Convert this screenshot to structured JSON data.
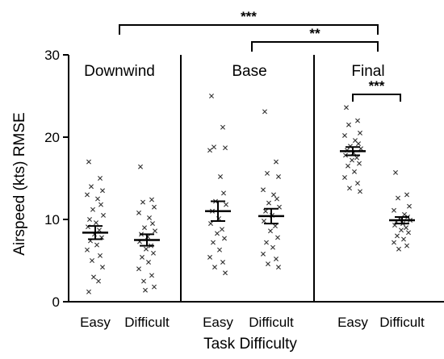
{
  "chart_data": {
    "type": "scatter",
    "xlabel": "Task Difficulty",
    "ylabel": "Airspeed (kts) RMSE",
    "ylim": [
      0,
      30
    ],
    "yticks": [
      0,
      10,
      20,
      30
    ],
    "grid": false,
    "panels": [
      {
        "title": "Downwind",
        "groups": [
          {
            "label": "Easy",
            "mean": 8.4,
            "sem": 0.8,
            "points": [
              17.0,
              15.0,
              14.0,
              13.5,
              13.0,
              12.5,
              11.8,
              11.2,
              10.5,
              10.0,
              9.6,
              9.1,
              8.7,
              8.2,
              7.8,
              7.4,
              6.9,
              6.3,
              5.6,
              5.0,
              4.2,
              3.0,
              2.5,
              1.2
            ]
          },
          {
            "label": "Difficult",
            "mean": 7.5,
            "sem": 0.7,
            "points": [
              16.4,
              12.4,
              12.1,
              11.5,
              10.8,
              10.2,
              9.5,
              9.0,
              8.6,
              8.2,
              7.9,
              7.3,
              6.8,
              6.4,
              5.9,
              5.4,
              4.8,
              4.0,
              3.2,
              2.5,
              1.8,
              1.4
            ]
          }
        ]
      },
      {
        "title": "Base",
        "groups": [
          {
            "label": "Easy",
            "mean": 11.0,
            "sem": 1.2,
            "points": [
              25.0,
              21.2,
              18.8,
              18.7,
              18.4,
              15.2,
              13.2,
              12.2,
              11.8,
              11.0,
              10.1,
              9.5,
              8.8,
              8.3,
              7.7,
              7.2,
              6.3,
              5.4,
              4.8,
              4.2,
              3.5
            ]
          },
          {
            "label": "Difficult",
            "mean": 10.4,
            "sem": 0.9,
            "points": [
              23.1,
              17.0,
              15.6,
              15.2,
              13.6,
              13.0,
              12.5,
              12.0,
              11.5,
              11.0,
              10.5,
              9.8,
              9.2,
              8.6,
              7.8,
              7.2,
              6.6,
              5.8,
              5.2,
              4.6,
              4.2
            ]
          }
        ]
      },
      {
        "title": "Final",
        "groups": [
          {
            "label": "Easy",
            "mean": 18.3,
            "sem": 0.5,
            "points": [
              23.6,
              22.0,
              21.5,
              20.5,
              20.2,
              19.6,
              19.2,
              18.9,
              18.6,
              18.4,
              18.1,
              17.8,
              17.5,
              17.2,
              16.8,
              16.5,
              15.8,
              15.1,
              14.4,
              13.8,
              13.4
            ]
          },
          {
            "label": "Difficult",
            "mean": 9.9,
            "sem": 0.4,
            "points": [
              15.7,
              13.0,
              12.6,
              11.6,
              11.1,
              10.6,
              10.3,
              10.1,
              9.9,
              9.7,
              9.5,
              9.3,
              9.0,
              8.7,
              8.4,
              8.0,
              7.6,
              7.2,
              6.8,
              6.4
            ]
          }
        ]
      }
    ],
    "significance": [
      {
        "label": "***",
        "from": "Downwind",
        "to": "Final",
        "level": 1
      },
      {
        "label": "**",
        "from": "Base",
        "to": "Final",
        "level": 2
      },
      {
        "label": "***",
        "from": "Final Easy",
        "to": "Final Difficult",
        "level": 3
      }
    ]
  }
}
